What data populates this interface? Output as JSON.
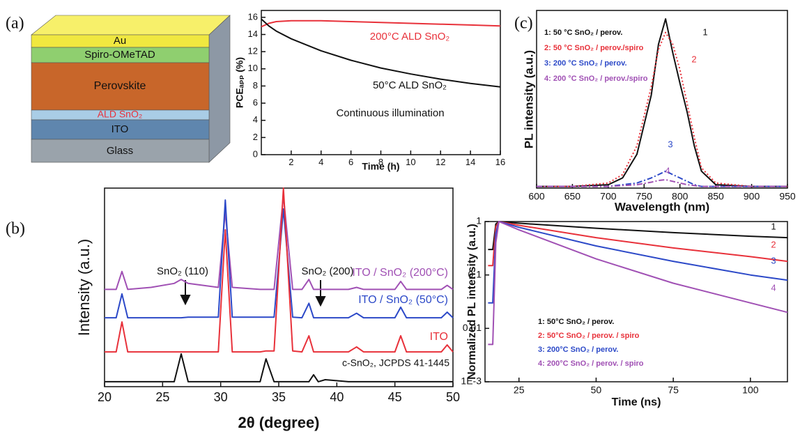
{
  "panel_labels": [
    "(a)",
    "(b)",
    "(c)"
  ],
  "device_stack": {
    "layers": [
      "Au",
      "Spiro-OMeTAD",
      "Perovskite",
      "ALD SnO₂",
      "ITO",
      "Glass"
    ]
  },
  "chart_data": [
    {
      "type": "line",
      "xlabel": "Time (h)",
      "ylabel": "PCEₐₚₚ (%)",
      "xlim": [
        0,
        16
      ],
      "xticks": [
        2,
        4,
        6,
        8,
        10,
        12,
        14,
        16
      ],
      "ylim": [
        0,
        16.8
      ],
      "yticks": [
        0,
        2,
        4,
        6,
        8,
        10,
        12,
        14,
        16
      ],
      "x": [
        0,
        0.5,
        1,
        2,
        3,
        4,
        6,
        8,
        10,
        12,
        14,
        16
      ],
      "series": [
        {
          "name": "200°C ALD SnO₂",
          "color": "#e8313a",
          "values": [
            14.9,
            15.3,
            15.5,
            15.6,
            15.6,
            15.6,
            15.5,
            15.4,
            15.3,
            15.2,
            15.1,
            15.0
          ]
        },
        {
          "name": "50°C ALD SnO₂",
          "color": "#111111",
          "values": [
            15.8,
            15.0,
            14.4,
            13.5,
            12.8,
            12.1,
            11.0,
            10.1,
            9.4,
            8.8,
            8.3,
            7.9
          ]
        }
      ],
      "annotations": [
        "Continuous illumination"
      ]
    },
    {
      "type": "line",
      "xlabel": "2θ (degree)",
      "ylabel": "Intensity (a.u.)",
      "xlim": [
        20,
        50
      ],
      "xticks": [
        20,
        25,
        30,
        35,
        40,
        45,
        50
      ],
      "ylim": [
        0,
        100
      ],
      "x": [
        20,
        21,
        21.5,
        22,
        24,
        26,
        26.6,
        27.2,
        29.8,
        30.4,
        31,
        33.4,
        33.9,
        34.6,
        35.4,
        36.2,
        37,
        37.6,
        38,
        38.4,
        39,
        41,
        41.7,
        42.3,
        45,
        45.5,
        46,
        49,
        49.5,
        50
      ],
      "series": [
        {
          "name": "ITO / SnO₂ (200°C)",
          "color": "#a050b4",
          "values": [
            49,
            49,
            58,
            49,
            50,
            52,
            54,
            52,
            50,
            88,
            50,
            49,
            49,
            49,
            96,
            49,
            49,
            54,
            49,
            49,
            49,
            49,
            50,
            49,
            49,
            53,
            49,
            49,
            51,
            49
          ]
        },
        {
          "name": "ITO / SnO₂ (50°C)",
          "color": "#2c49c8",
          "values": [
            34.7,
            34.7,
            46.7,
            34.7,
            34.7,
            34.7,
            34.7,
            35,
            35,
            94,
            35,
            35,
            35,
            35,
            89.5,
            35,
            34.7,
            42,
            34.7,
            34.7,
            34.7,
            34.7,
            37,
            34.7,
            34.7,
            40,
            34.7,
            34.7,
            37.5,
            34.7
          ]
        },
        {
          "name": "ITO",
          "color": "#e8313a",
          "values": [
            17.5,
            17.5,
            32.6,
            17.5,
            17.5,
            17.5,
            17.5,
            17.5,
            17.5,
            79,
            17.5,
            17.5,
            18,
            18,
            100,
            18,
            17.5,
            25.6,
            17.5,
            17.5,
            17.5,
            17.5,
            20,
            17.5,
            17.5,
            25.6,
            17.5,
            17.5,
            21,
            17.5
          ]
        },
        {
          "name": "c-SnO₂, JCPDS 41-1445",
          "color": "#111111",
          "values": [
            2.5,
            2.5,
            2.5,
            2.5,
            2.5,
            2.5,
            16.5,
            2.5,
            2.5,
            2.5,
            2.5,
            2.5,
            14,
            2.5,
            2.5,
            2.5,
            2.5,
            2.5,
            6,
            2.5,
            3.5,
            2.5,
            2.5,
            2.5,
            2.5,
            2.5,
            2.5,
            2.5,
            2.5,
            2.5
          ]
        }
      ],
      "annotations": [
        "SnO₂ (110)",
        "SnO₂ (200)"
      ]
    },
    {
      "type": "line",
      "xlabel": "Wavelength (nm)",
      "ylabel": "PL intensity (a.u.)",
      "xlim": [
        600,
        950
      ],
      "xticks": [
        600,
        650,
        700,
        750,
        800,
        850,
        900,
        950
      ],
      "ylim": [
        0,
        1.05
      ],
      "x": [
        600,
        650,
        700,
        720,
        740,
        760,
        770,
        780,
        790,
        800,
        810,
        820,
        830,
        850,
        900,
        950
      ],
      "series": [
        {
          "name": "1: 50 °C SnO₂ / perov.",
          "label": "1",
          "color": "#111111",
          "style": "solid",
          "values": [
            0.01,
            0.01,
            0.02,
            0.06,
            0.2,
            0.55,
            0.85,
            1.0,
            0.8,
            0.62,
            0.45,
            0.25,
            0.1,
            0.02,
            0.01,
            0.01
          ]
        },
        {
          "name": "2: 50 °C SnO₂ / perov./spiro",
          "label": "2",
          "color": "#e8313a",
          "style": "dotted",
          "values": [
            0.01,
            0.01,
            0.03,
            0.08,
            0.25,
            0.6,
            0.82,
            0.92,
            0.85,
            0.7,
            0.5,
            0.3,
            0.12,
            0.03,
            0.01,
            0.01
          ]
        },
        {
          "name": "3: 200 °C SnO₂ / perov.",
          "label": "3",
          "color": "#2c49c8",
          "style": "dashdot",
          "values": [
            0.01,
            0.01,
            0.01,
            0.02,
            0.03,
            0.06,
            0.08,
            0.1,
            0.08,
            0.06,
            0.04,
            0.02,
            0.01,
            0.01,
            0.01,
            0.01
          ]
        },
        {
          "name": "4: 200 °C SnO₂ / perov./spiro",
          "label": "4",
          "color": "#a050b4",
          "style": "dashdot",
          "values": [
            0.01,
            0.01,
            0.01,
            0.015,
            0.02,
            0.035,
            0.045,
            0.05,
            0.04,
            0.03,
            0.02,
            0.015,
            0.01,
            0.01,
            0.01,
            0.01
          ]
        }
      ]
    },
    {
      "type": "line",
      "xlabel": "Time (ns)",
      "ylabel": "Normalized PL intensity (a.u.)",
      "log_y": true,
      "xlim": [
        14,
        112
      ],
      "xticks": [
        25,
        50,
        75,
        100
      ],
      "ylim": [
        0.001,
        1
      ],
      "yticks": [
        {
          "value": 0.001,
          "label": "1E-3"
        },
        0.01,
        0.1,
        1
      ],
      "x": [
        15,
        16.5,
        17.5,
        18.5,
        25,
        50,
        75,
        100,
        112
      ],
      "series": [
        {
          "name": "1: 50°C SnO₂ / perov.",
          "label": "1",
          "color": "#111111",
          "values": [
            0.3,
            0.3,
            0.9,
            1,
            0.93,
            0.75,
            0.62,
            0.53,
            0.5
          ]
        },
        {
          "name": "2: 50°C SnO₂ / perov. / spiro",
          "label": "2",
          "color": "#e8313a",
          "values": [
            0.15,
            0.15,
            0.8,
            1,
            0.85,
            0.5,
            0.32,
            0.22,
            0.18
          ]
        },
        {
          "name": "3: 200°C SnO₂ / perov.",
          "label": "3",
          "color": "#2c49c8",
          "values": [
            0.03,
            0.03,
            0.6,
            1,
            0.78,
            0.35,
            0.18,
            0.1,
            0.08
          ]
        },
        {
          "name": "4: 200°C SnO₂ / perov. / spiro",
          "label": "4",
          "color": "#a050b4",
          "values": [
            0.005,
            0.005,
            0.4,
            1,
            0.7,
            0.2,
            0.07,
            0.03,
            0.02
          ]
        }
      ]
    }
  ]
}
